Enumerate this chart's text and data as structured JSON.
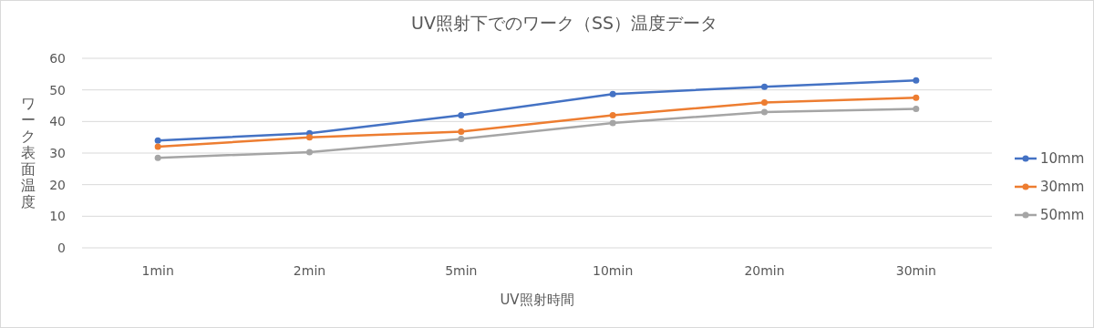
{
  "chart_data": {
    "type": "line",
    "title": "UV照射下でのワーク（SS）温度データ",
    "xlabel": "UV照射時間",
    "ylabel": "ワーク表面温度",
    "categories": [
      "1min",
      "2min",
      "5min",
      "10min",
      "20min",
      "30min"
    ],
    "series": [
      {
        "name": "10mm",
        "color": "#4472c4",
        "values": [
          34,
          36.3,
          42,
          48.7,
          51,
          53
        ]
      },
      {
        "name": "30mm",
        "color": "#ed7d31",
        "values": [
          32,
          35,
          36.8,
          42,
          46,
          47.5
        ]
      },
      {
        "name": "50mm",
        "color": "#a5a5a5",
        "values": [
          28.5,
          30.3,
          34.5,
          39.5,
          43,
          44
        ]
      }
    ],
    "ylim": [
      0,
      60
    ],
    "yticks": [
      0,
      10,
      20,
      30,
      40,
      50,
      60
    ],
    "grid": "y",
    "legend": "right",
    "marker": "circle",
    "line_style": "solid"
  }
}
